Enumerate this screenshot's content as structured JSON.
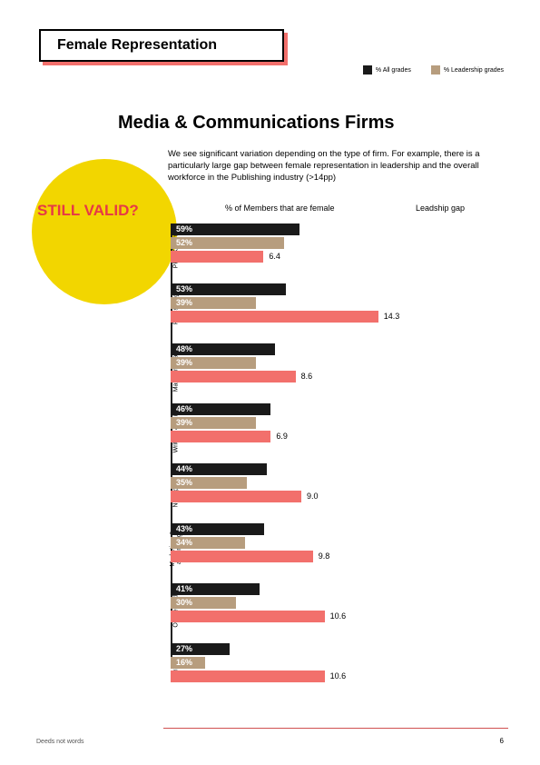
{
  "title": "Female Representation",
  "legend": {
    "all": {
      "label": "% All grades",
      "color": "#1a1a1a"
    },
    "leader": {
      "label": "% Leadership grades",
      "color": "#b79d7e"
    }
  },
  "section_title": "Media & Communications Firms",
  "intro": "We see significant variation depending on the type of firm. For example, there is a particularly large gap between female representation in leadership and the overall workforce in the Publishing industry (>14pp)",
  "callout": "STILL VALID?",
  "chart": {
    "header_left": "% of Members that are female",
    "header_right": "Leadship gap",
    "max_width": 240,
    "all_color": "#1a1a1a",
    "leader_color": "#b79d7e",
    "gap_color": "#f2706c",
    "groups": [
      {
        "label": "PR & Comms",
        "all": 59,
        "leader": 52,
        "gap": 6.4
      },
      {
        "label": "Publishi ng",
        "all": 53,
        "leader": 39,
        "gap": 14.3
      },
      {
        "label": "Market research",
        "all": 48,
        "leader": 39,
        "gap": 8.6
      },
      {
        "label": "Writin g & editing",
        "all": 46,
        "leader": 39,
        "gap": 6.9
      },
      {
        "label": "Newspape rs",
        "all": 44,
        "leader": 35,
        "gap": 9.0
      },
      {
        "label": "Marketin g & advertising",
        "all": 43,
        "leader": 34,
        "gap": 9.8
      },
      {
        "label": "Online media",
        "all": 41,
        "leader": 30,
        "gap": 10.6
      },
      {
        "label": "Printin g",
        "all": 27,
        "leader": 16,
        "gap": 10.6
      }
    ],
    "gap_max": 15
  },
  "footer_left": "Deeds not words",
  "page_number": "6"
}
